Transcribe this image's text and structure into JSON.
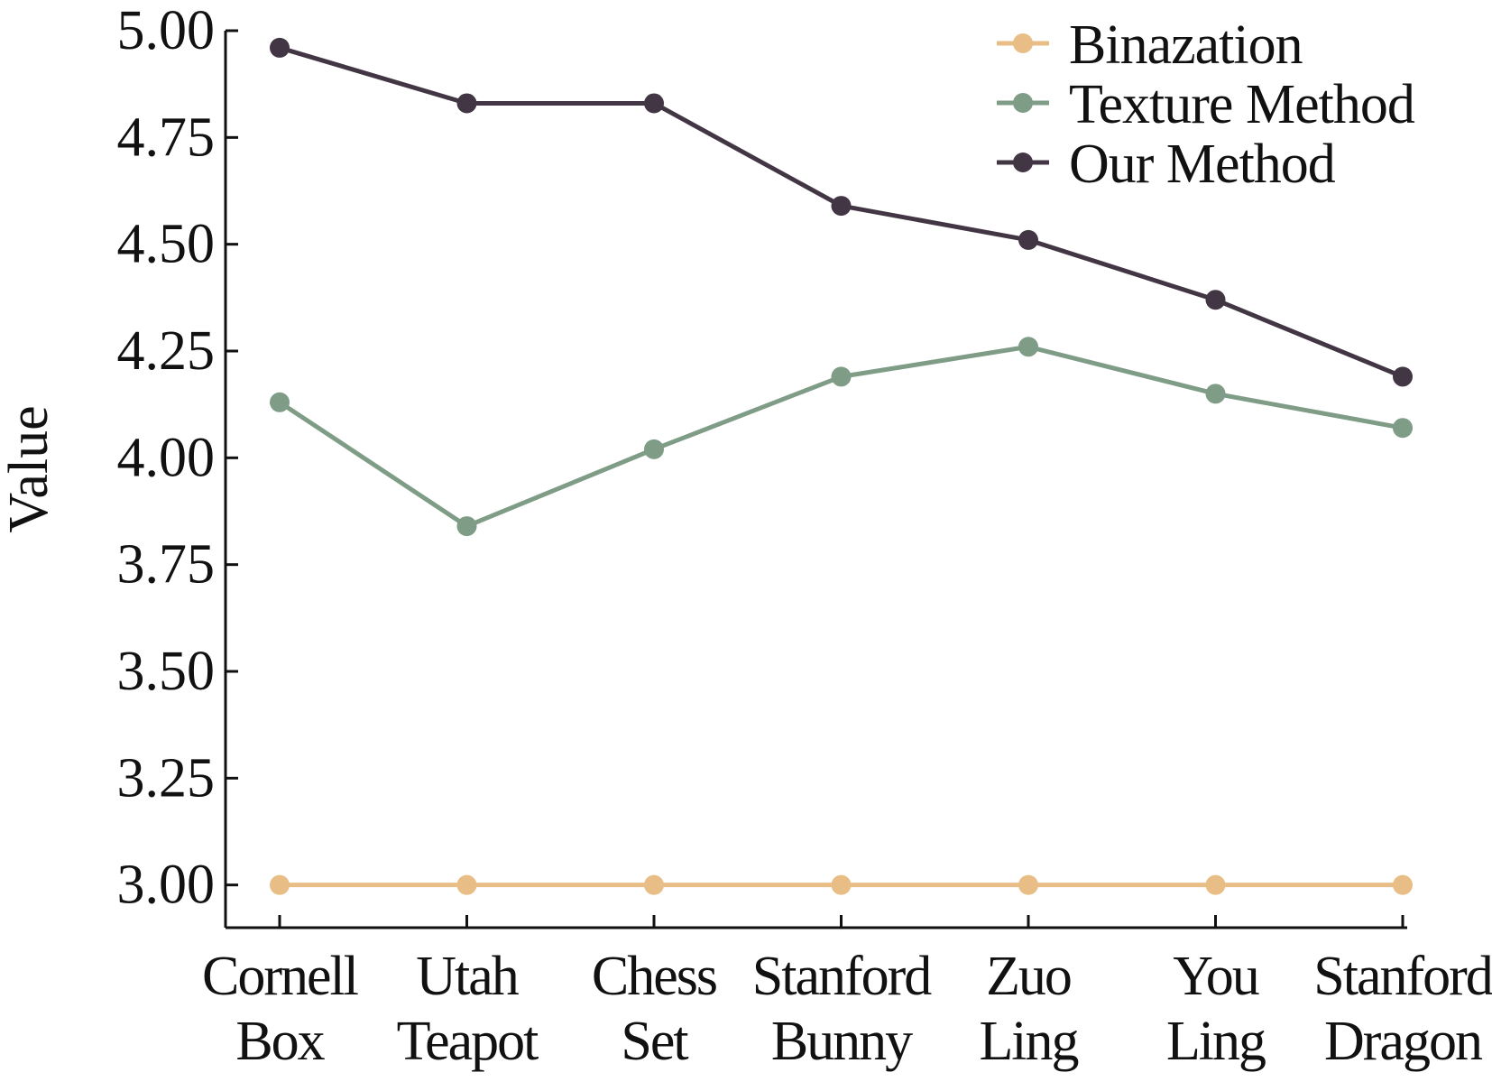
{
  "chart_data": {
    "type": "line",
    "categories": [
      [
        "Cornell",
        "Box"
      ],
      [
        "Utah",
        "Teapot"
      ],
      [
        "Chess",
        "Set"
      ],
      [
        "Stanford",
        "Bunny"
      ],
      [
        "Zuo",
        "Ling"
      ],
      [
        "You",
        "Ling"
      ],
      [
        "Stanford",
        "Dragon"
      ]
    ],
    "series": [
      {
        "name": "Binazation",
        "color": "#E8BE86",
        "values": [
          3.0,
          3.0,
          3.0,
          3.0,
          3.0,
          3.0,
          3.0
        ]
      },
      {
        "name": "Texture Method",
        "color": "#7F9C86",
        "values": [
          4.13,
          3.84,
          4.02,
          4.19,
          4.26,
          4.15,
          4.07
        ]
      },
      {
        "name": "Our Method",
        "color": "#433644",
        "values": [
          4.96,
          4.83,
          4.83,
          4.59,
          4.51,
          4.37,
          4.19
        ]
      }
    ],
    "ylabel": "Value",
    "xlabel": "",
    "ylim": [
      2.9,
      5.0
    ],
    "yticks": [
      "3.00",
      "3.25",
      "3.50",
      "3.75",
      "4.00",
      "4.25",
      "4.50",
      "4.75",
      "5.00"
    ],
    "grid": false,
    "legend_position": "top-right"
  }
}
